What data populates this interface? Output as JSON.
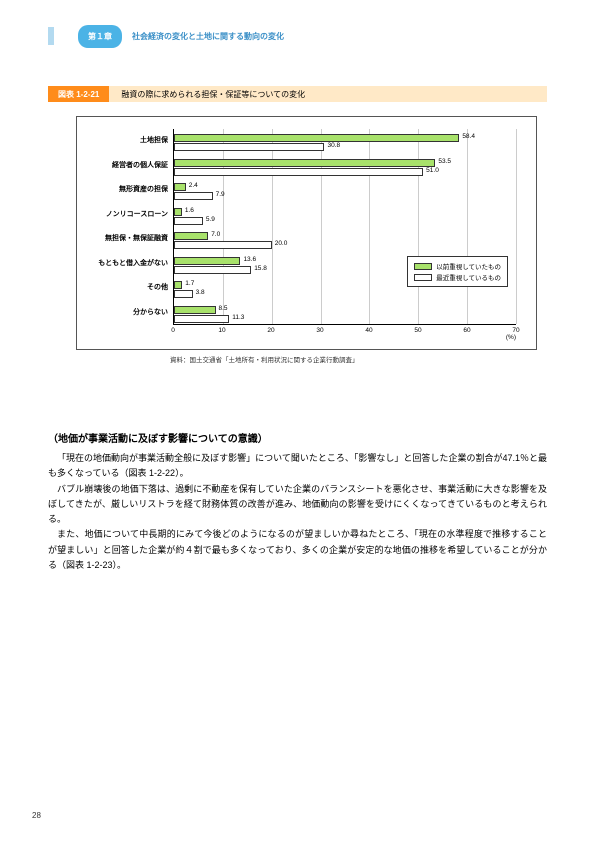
{
  "header": {
    "chapter_tab": "第１章",
    "title": "社会経済の変化と土地に関する動向の変化"
  },
  "figure": {
    "label": "図表 1-2-21",
    "title": "融資の際に求められる担保・保証等についての変化"
  },
  "chart": {
    "type": "bar",
    "orientation": "horizontal",
    "xlim": [
      0,
      70
    ],
    "xtick_step": 10,
    "x_ticks": [
      0,
      10,
      20,
      30,
      40,
      50,
      60,
      70
    ],
    "x_unit": "(%)",
    "background_color": "#ffffff",
    "grid_color": "#cccccc",
    "bar_colors": {
      "prev": "#a8e26b",
      "recent": "#ffffff"
    },
    "border_color": "#333333",
    "categories": [
      {
        "label": "土地担保",
        "prev": 58.4,
        "recent": 30.8
      },
      {
        "label": "経営者の個人保証",
        "prev": 53.5,
        "recent": 51.0
      },
      {
        "label": "無形資産の担保",
        "prev": 2.4,
        "recent": 7.9
      },
      {
        "label": "ノンリコースローン",
        "prev": 1.6,
        "recent": 5.9
      },
      {
        "label": "無担保・無保証融資",
        "prev": 7.0,
        "recent": 20.0
      },
      {
        "label": "もともと借入金がない",
        "prev": 13.6,
        "recent": 15.8
      },
      {
        "label": "その他",
        "prev": 1.7,
        "recent": 3.8
      },
      {
        "label": "分からない",
        "prev": 8.5,
        "recent": 11.3
      }
    ],
    "legend": {
      "prev": "以前重視していたもの",
      "recent": "最近重視しているもの"
    },
    "source": "資料：国土交通省「土地所有・利用状況に関する企業行動調査」"
  },
  "section": {
    "title": "（地価が事業活動に及ぼす影響についての意識）",
    "paragraphs": [
      "「現在の地価動向が事業活動全般に及ぼす影響」について聞いたところ、「影響なし」と回答した企業の割合が47.1％と最も多くなっている（図表 1-2-22）。",
      "バブル崩壊後の地価下落は、過剰に不動産を保有していた企業のバランスシートを悪化させ、事業活動に大きな影響を及ぼしてきたが、厳しいリストラを経て財務体質の改善が進み、地価動向の影響を受けにくくなってきているものと考えられる。",
      "また、地価について中長期的にみて今後どのようになるのが望ましいか尋ねたところ、「現在の水準程度で推移することが望ましい」と回答した企業が約４割で最も多くなっており、多くの企業が安定的な地価の推移を希望していることが分かる（図表 1-2-23）。"
    ]
  },
  "page_number": "28"
}
